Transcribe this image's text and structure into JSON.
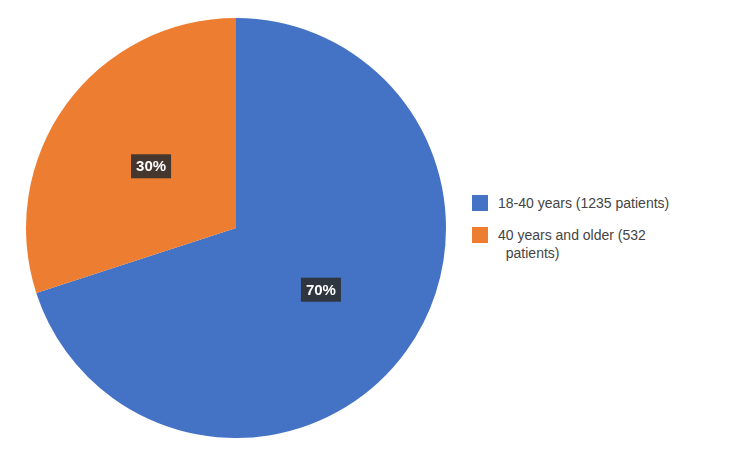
{
  "chart_data": {
    "type": "pie",
    "categories": [
      "18-40 years (1235 patients)",
      "40 years and older (532\n  patients)"
    ],
    "values": [
      70,
      30
    ],
    "value_labels": [
      "70%",
      "30%"
    ],
    "colors": [
      "#4472C4",
      "#ED7D31"
    ],
    "data_labels": true,
    "legend": "right"
  }
}
